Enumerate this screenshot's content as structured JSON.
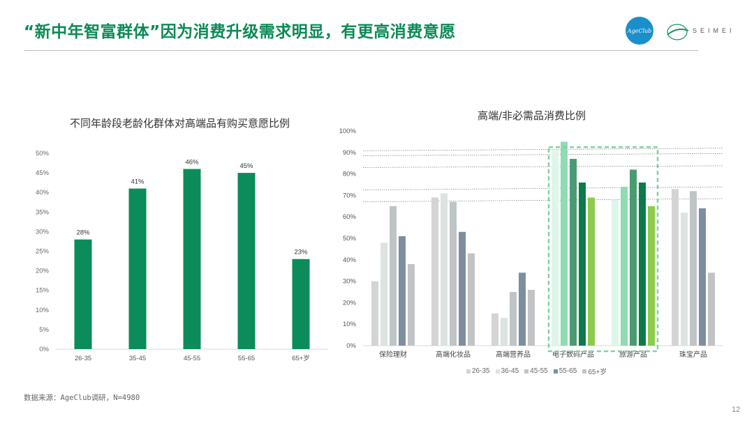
{
  "header": {
    "title": "“新中年智富群体”因为消费升级需求明显，有更高消费意愿",
    "logo_ageclub": "AgeClub",
    "logo_seimei": "SEIMEI"
  },
  "footer": {
    "source": "数据来源：AgeClub调研，N=4980",
    "page_number": "12"
  },
  "colors": {
    "title": "#0b8a55",
    "bar_left": "#0b8c5a",
    "highlight_box": "#7fd3a6"
  },
  "chart_data": [
    {
      "type": "bar",
      "title": "不同年龄段老龄化群体对高端品有购买意愿比例",
      "categories": [
        "26-35",
        "35-45",
        "45-55",
        "55-65",
        "65+岁"
      ],
      "values": [
        28,
        41,
        46,
        45,
        23
      ],
      "data_labels": [
        "28%",
        "41%",
        "46%",
        "45%",
        "23%"
      ],
      "ylim": [
        0,
        50
      ],
      "yticks": [
        "0%",
        "5%",
        "10%",
        "15%",
        "20%",
        "25%",
        "30%",
        "35%",
        "40%",
        "45%",
        "50%"
      ],
      "grid": false
    },
    {
      "type": "bar",
      "title": "高端/非必需品消费比例",
      "categories": [
        "保险理财",
        "高端化妆品",
        "高端营养品",
        "电子数码产品",
        "旅游产品",
        "珠宝产品"
      ],
      "series": [
        {
          "name": "26-35",
          "values": [
            30,
            69,
            15,
            91,
            68,
            73
          ]
        },
        {
          "name": "36-45",
          "values": [
            48,
            71,
            13,
            95,
            74,
            62
          ]
        },
        {
          "name": "45-55",
          "values": [
            65,
            67,
            25,
            87,
            82,
            72
          ]
        },
        {
          "name": "55-65",
          "values": [
            51,
            53,
            34,
            76,
            76,
            64
          ]
        },
        {
          "name": "65+岁",
          "values": [
            38,
            43,
            26,
            69,
            65,
            34
          ]
        }
      ],
      "ylim": [
        0,
        100
      ],
      "yticks": [
        "0%",
        "10%",
        "20%",
        "30%",
        "40%",
        "50%",
        "60%",
        "70%",
        "80%",
        "90%",
        "100%"
      ],
      "highlighted_categories": [
        "电子数码产品",
        "旅游产品"
      ],
      "legend_position": "bottom"
    }
  ]
}
